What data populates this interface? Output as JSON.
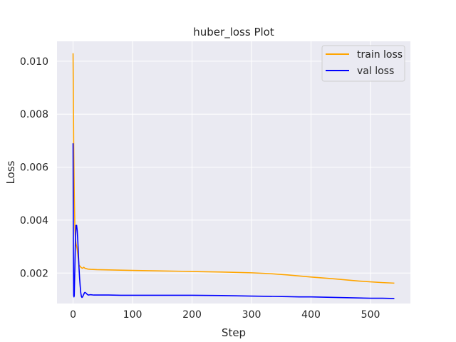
{
  "chart_data": {
    "type": "line",
    "title": "huber_loss Plot",
    "xlabel": "Step",
    "ylabel": "Loss",
    "xlim": [
      -27,
      567
    ],
    "ylim": [
      0.00085,
      0.01075
    ],
    "xticks": [
      0,
      100,
      200,
      300,
      400,
      500
    ],
    "xtick_labels": [
      "0",
      "100",
      "200",
      "300",
      "400",
      "500"
    ],
    "yticks": [
      0.002,
      0.004,
      0.006,
      0.008,
      0.01
    ],
    "ytick_labels": [
      "0.002",
      "0.004",
      "0.006",
      "0.008",
      "0.010"
    ],
    "grid": true,
    "legend_position": "top-right",
    "series": [
      {
        "name": "train loss",
        "color": "#ffa500",
        "x": [
          0,
          1,
          2,
          3,
          4,
          5,
          6,
          7,
          8,
          9,
          10,
          12,
          14,
          16,
          18,
          20,
          25,
          30,
          40,
          60,
          80,
          100,
          150,
          200,
          250,
          300,
          330,
          360,
          400,
          440,
          480,
          500,
          520,
          540
        ],
        "y": [
          0.0103,
          0.007,
          0.005,
          0.0038,
          0.0033,
          0.0031,
          0.003,
          0.0029,
          0.0027,
          0.0025,
          0.0023,
          0.00225,
          0.0022,
          0.00218,
          0.00222,
          0.00218,
          0.00215,
          0.00214,
          0.00213,
          0.00212,
          0.00211,
          0.0021,
          0.00208,
          0.00206,
          0.00204,
          0.00201,
          0.00198,
          0.00193,
          0.00185,
          0.00178,
          0.0017,
          0.00167,
          0.00164,
          0.00162
        ]
      },
      {
        "name": "val loss",
        "color": "#0000ff",
        "x": [
          0,
          0.5,
          1,
          1.5,
          2,
          3,
          4,
          5,
          6,
          7,
          8,
          9,
          10,
          11,
          12,
          13,
          14,
          15,
          16,
          17,
          18,
          19,
          20,
          22,
          24,
          26,
          28,
          30,
          35,
          40,
          60,
          80,
          100,
          150,
          200,
          250,
          300,
          330,
          360,
          380,
          400,
          420,
          440,
          460,
          480,
          500,
          520,
          540
        ],
        "y": [
          0.0069,
          0.003,
          0.00115,
          0.0011,
          0.00115,
          0.0022,
          0.0033,
          0.0038,
          0.0038,
          0.0036,
          0.0032,
          0.0027,
          0.0022,
          0.0018,
          0.0015,
          0.00125,
          0.00112,
          0.00108,
          0.0011,
          0.00115,
          0.0012,
          0.00125,
          0.00127,
          0.00124,
          0.00119,
          0.00117,
          0.00118,
          0.00118,
          0.00117,
          0.00117,
          0.00117,
          0.00116,
          0.00116,
          0.00116,
          0.00116,
          0.00115,
          0.00113,
          0.00112,
          0.00111,
          0.0011,
          0.0011,
          0.00109,
          0.00108,
          0.00107,
          0.00106,
          0.00105,
          0.00105,
          0.00104
        ]
      }
    ]
  }
}
